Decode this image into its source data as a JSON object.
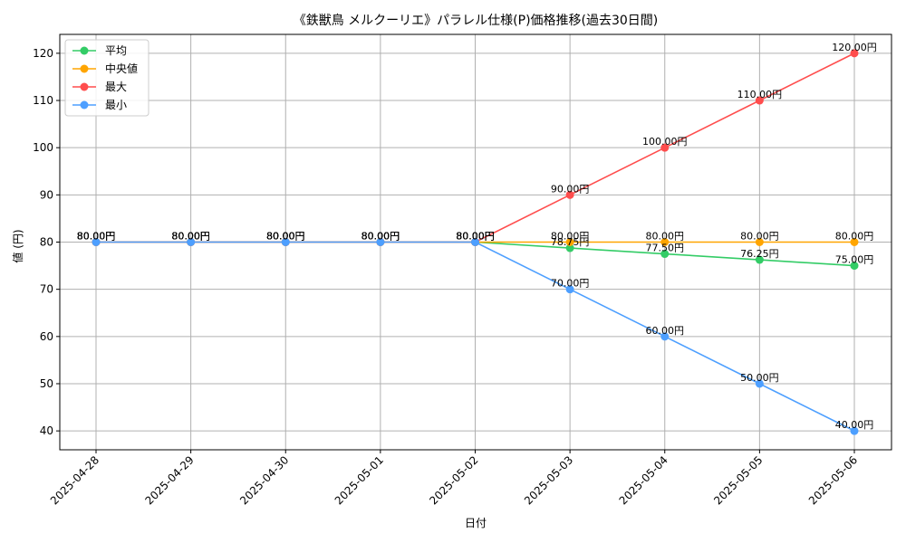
{
  "chart_data": {
    "type": "line",
    "title": "《鉄獣鳥 メルクーリエ》パラレル仕様(P)価格推移(過去30日間)",
    "xlabel": "日付",
    "ylabel": "値 (円)",
    "categories": [
      "2025-04-28",
      "2025-04-29",
      "2025-04-30",
      "2025-05-01",
      "2025-05-02",
      "2025-05-03",
      "2025-05-04",
      "2025-05-05",
      "2025-05-06"
    ],
    "ylim": [
      36,
      124
    ],
    "yticks": [
      40,
      50,
      60,
      70,
      80,
      90,
      100,
      110,
      120
    ],
    "grid": true,
    "legend_position": "top-left",
    "series": [
      {
        "name": "平均",
        "color": "#33cc66",
        "values": [
          80,
          80,
          80,
          80,
          80,
          78.75,
          77.5,
          76.25,
          75
        ],
        "labels": [
          "80.00円",
          "80.00円",
          "80.00円",
          "80.00円",
          "80.00円",
          "78.75円",
          "77.50円",
          "76.25円",
          "75.00円"
        ]
      },
      {
        "name": "中央値",
        "color": "#ffa500",
        "values": [
          80,
          80,
          80,
          80,
          80,
          80,
          80,
          80,
          80
        ],
        "labels": [
          "80.00円",
          "80.00円",
          "80.00円",
          "80.00円",
          "80.00円",
          "80.00円",
          "80.00円",
          "80.00円",
          "80.00円"
        ]
      },
      {
        "name": "最大",
        "color": "#ff4d4d",
        "values": [
          80,
          80,
          80,
          80,
          80,
          90,
          100,
          110,
          120
        ],
        "labels": [
          "80.00円",
          "80.00円",
          "80.00円",
          "80.00円",
          "80.00円",
          "90.00円",
          "100.00円",
          "110.00円",
          "120.00円"
        ]
      },
      {
        "name": "最小",
        "color": "#4d9fff",
        "values": [
          80,
          80,
          80,
          80,
          80,
          70,
          60,
          50,
          40
        ],
        "labels": [
          "80.00円",
          "80.00円",
          "80.00円",
          "80.00円",
          "80.00円",
          "70.00円",
          "60.00円",
          "50.00円",
          "40.00円"
        ]
      }
    ]
  }
}
